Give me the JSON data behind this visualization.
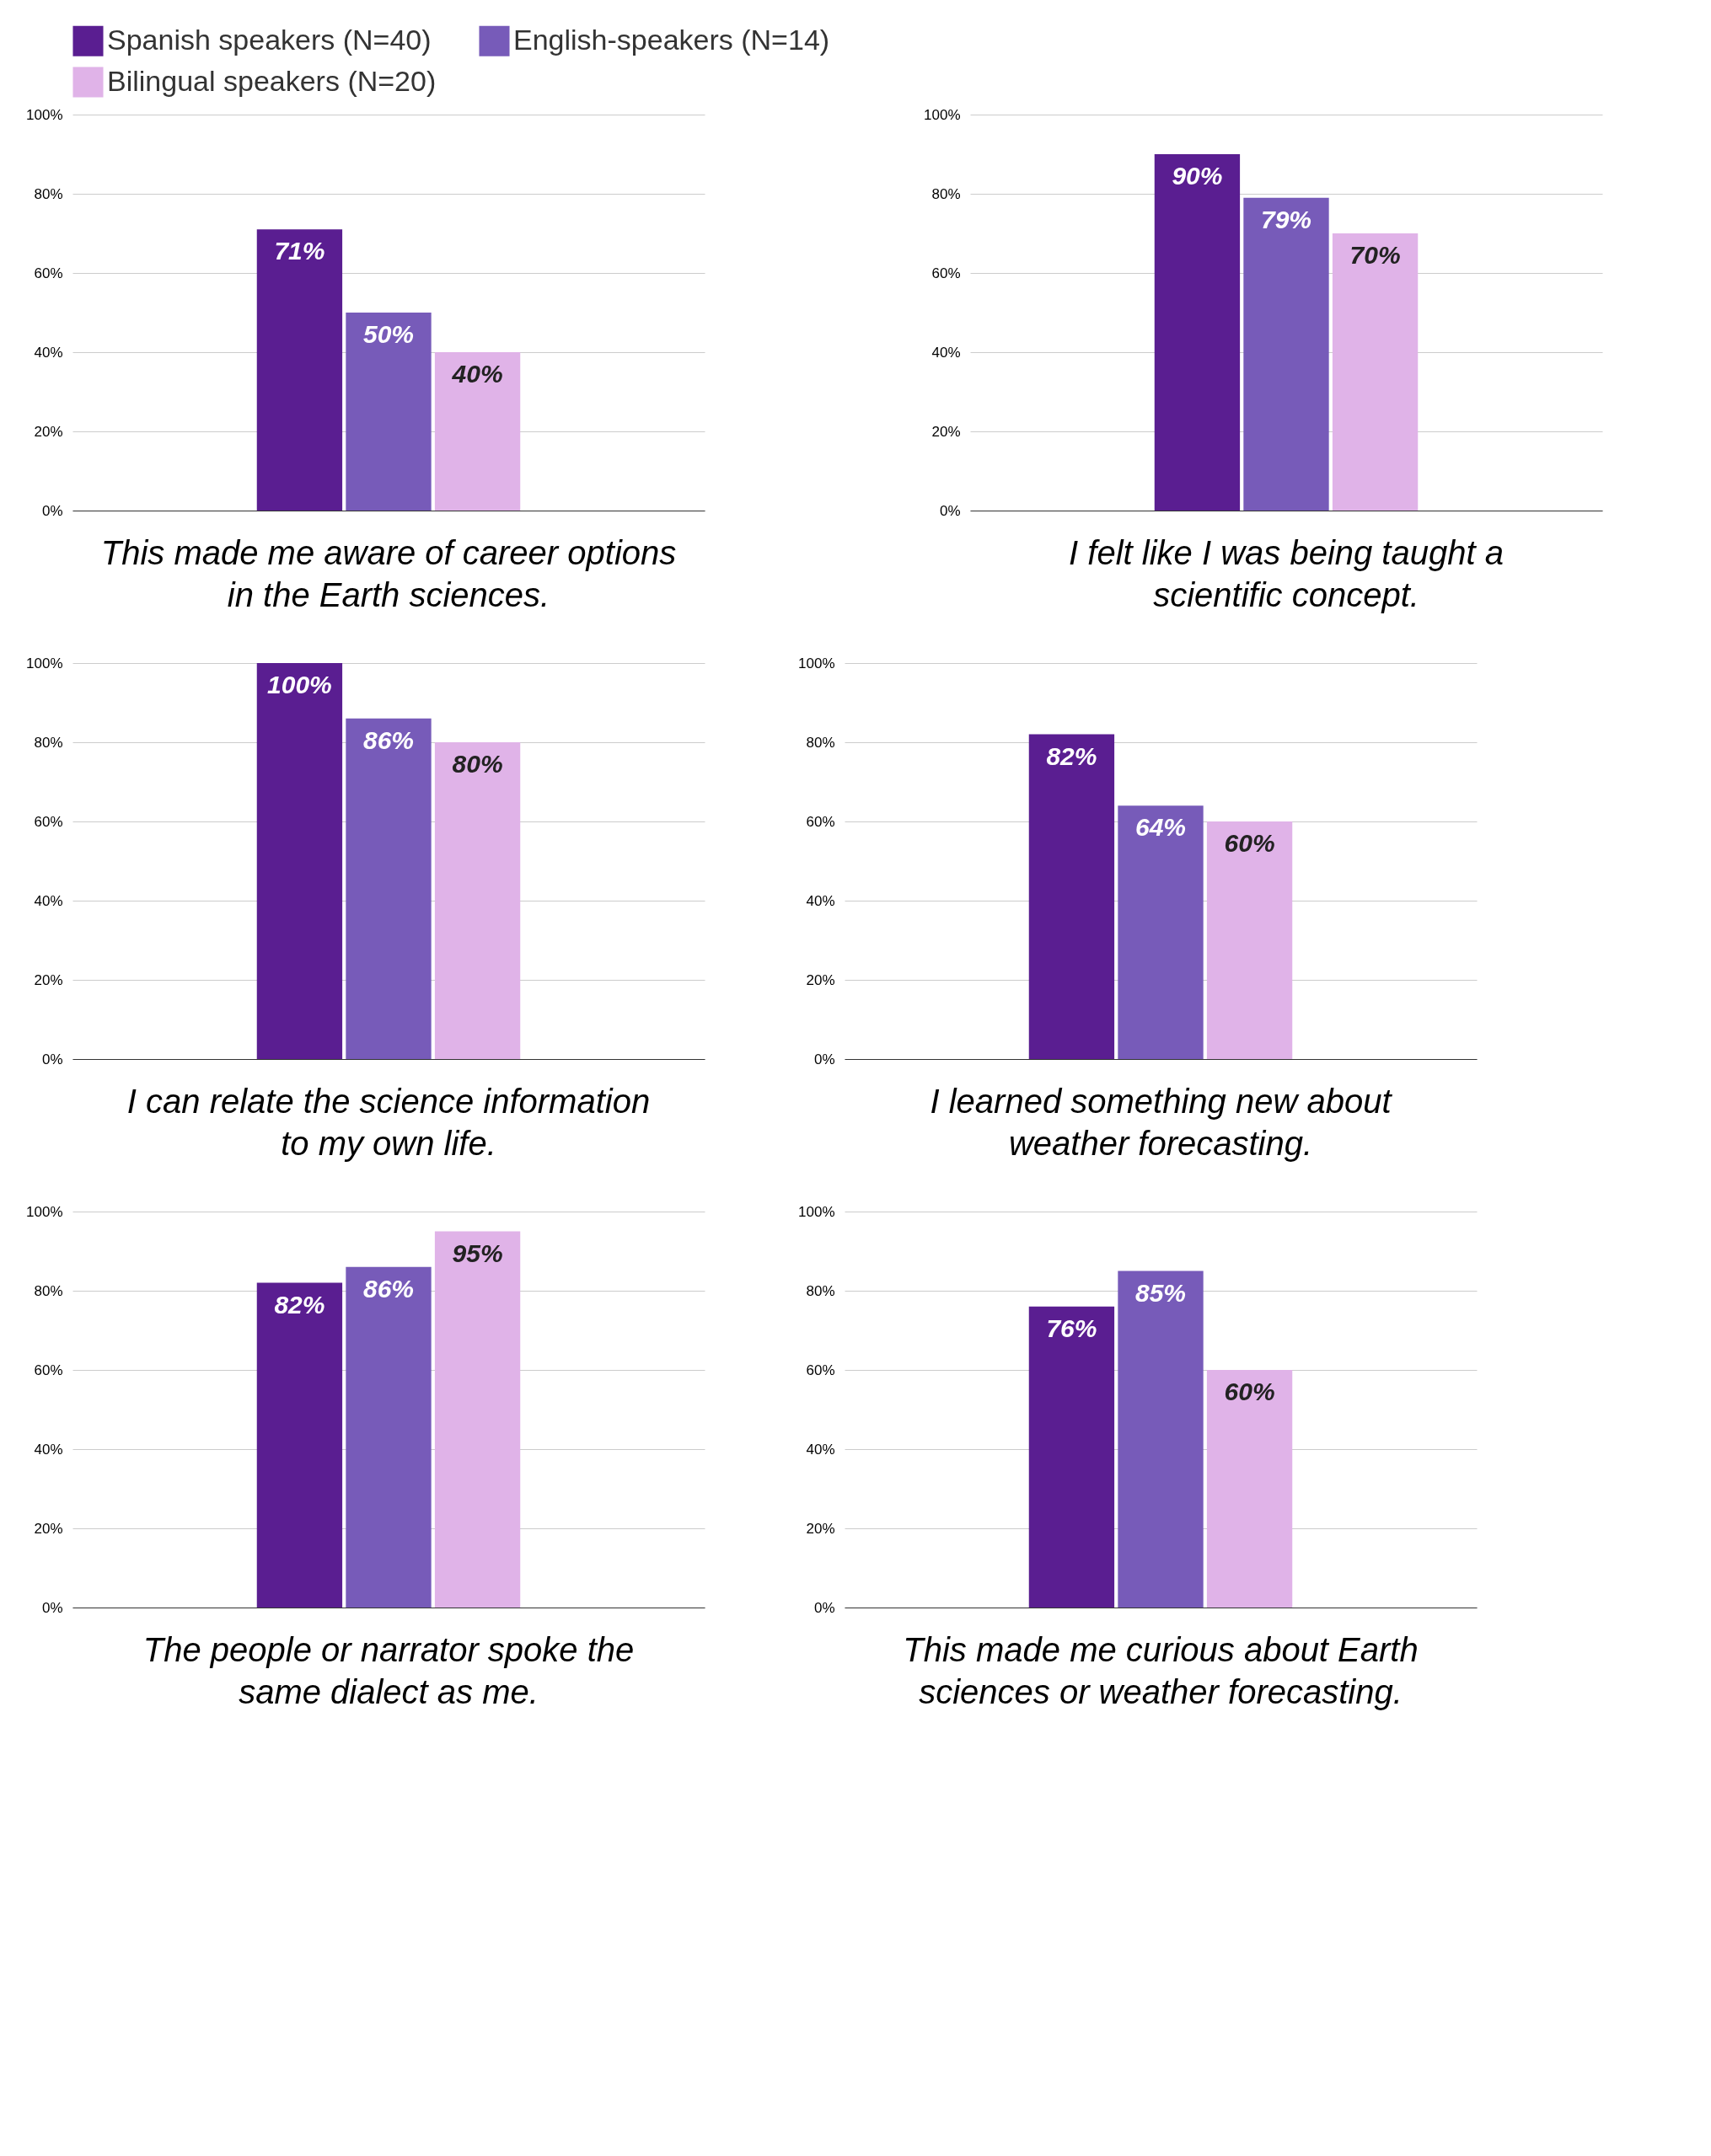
{
  "chart_data": [
    {
      "type": "bar",
      "title": "This made me aware of career options in the Earth sciences.",
      "categories": [
        null
      ],
      "series": [
        {
          "name": "Spanish speakers (N=40)",
          "color": "#5a1e91",
          "values": [
            71
          ],
          "value_labels": [
            "71%"
          ]
        },
        {
          "name": "English-speakers (N=14)",
          "color": "#775bb9",
          "values": [
            50
          ],
          "value_labels": [
            "50%"
          ]
        },
        {
          "name": "Bilingual speakers (N=20)",
          "color": "#e0b3e8",
          "values": [
            40
          ],
          "value_labels": [
            "40%"
          ]
        }
      ],
      "ylim": [
        0,
        100
      ],
      "yticks": [
        {
          "value": 0,
          "label": "0%"
        },
        {
          "value": 20,
          "label": "20%"
        },
        {
          "value": 40,
          "label": "40%"
        },
        {
          "value": 60,
          "label": "60%"
        },
        {
          "value": 80,
          "label": "80%"
        },
        {
          "value": 100,
          "label": "100%"
        }
      ],
      "grid": "y",
      "legend": "top",
      "tick_labels": "y"
    },
    {
      "type": "bar",
      "title": "I felt like I was being taught a scientific concept.",
      "categories": [
        null
      ],
      "series": [
        {
          "color": "#5a1e91",
          "values": [
            90
          ],
          "value_labels": [
            "90%"
          ]
        },
        {
          "color": "#775bb9",
          "values": [
            79
          ],
          "value_labels": [
            "79%"
          ]
        },
        {
          "color": "#e0b3e8",
          "values": [
            70
          ],
          "value_labels": [
            "70%"
          ]
        }
      ],
      "ylim": [
        0,
        100
      ],
      "yticks": [
        {
          "value": 0,
          "label": "0%"
        },
        {
          "value": 20,
          "label": "20%"
        },
        {
          "value": 40,
          "label": "40%"
        },
        {
          "value": 60,
          "label": "60%"
        },
        {
          "value": 80,
          "label": "80%"
        },
        {
          "value": 100,
          "label": "100%"
        }
      ],
      "grid": "y",
      "tick_labels": "y"
    },
    {
      "type": "bar",
      "title": "I can relate the science information to my own life.",
      "categories": [
        null
      ],
      "series": [
        {
          "color": "#5a1e91",
          "values": [
            100
          ],
          "value_labels": [
            "100%"
          ]
        },
        {
          "color": "#775bb9",
          "values": [
            86
          ],
          "value_labels": [
            "86%"
          ]
        },
        {
          "color": "#e0b3e8",
          "values": [
            80
          ],
          "value_labels": [
            "80%"
          ]
        }
      ],
      "ylim": [
        0,
        100
      ],
      "yticks": [
        {
          "value": 0,
          "label": "0%"
        },
        {
          "value": 20,
          "label": "20%"
        },
        {
          "value": 40,
          "label": "40%"
        },
        {
          "value": 60,
          "label": "60%"
        },
        {
          "value": 80,
          "label": "80%"
        },
        {
          "value": 100,
          "label": "100%"
        }
      ],
      "grid": "y",
      "tick_labels": "y"
    },
    {
      "type": "bar",
      "title": "I learned something new about weather forecasting.",
      "categories": [
        null
      ],
      "series": [
        {
          "color": "#5a1e91",
          "values": [
            82
          ],
          "value_labels": [
            "82%"
          ]
        },
        {
          "color": "#775bb9",
          "values": [
            64
          ],
          "value_labels": [
            "64%"
          ]
        },
        {
          "color": "#e0b3e8",
          "values": [
            60
          ],
          "value_labels": [
            "60%"
          ]
        }
      ],
      "ylim": [
        0,
        100
      ],
      "yticks": [
        {
          "value": 0,
          "label": "0%"
        },
        {
          "value": 20,
          "label": "20%"
        },
        {
          "value": 40,
          "label": "40%"
        },
        {
          "value": 60,
          "label": "60%"
        },
        {
          "value": 80,
          "label": "80%"
        },
        {
          "value": 100,
          "label": "100%"
        }
      ],
      "grid": "y",
      "tick_labels": "y"
    },
    {
      "type": "bar",
      "title": "The people or narrator spoke the same dialect as me.",
      "categories": [
        null
      ],
      "series": [
        {
          "color": "#5a1e91",
          "values": [
            82
          ],
          "value_labels": [
            "82%"
          ]
        },
        {
          "color": "#775bb9",
          "values": [
            86
          ],
          "value_labels": [
            "86%"
          ]
        },
        {
          "color": "#e0b3e8",
          "values": [
            95
          ],
          "value_labels": [
            "95%"
          ]
        }
      ],
      "ylim": [
        0,
        100
      ],
      "yticks": [
        {
          "value": 0,
          "label": "0%"
        },
        {
          "value": 20,
          "label": "20%"
        },
        {
          "value": 40,
          "label": "40%"
        },
        {
          "value": 60,
          "label": "60%"
        },
        {
          "value": 80,
          "label": "80%"
        },
        {
          "value": 100,
          "label": "100%"
        }
      ],
      "grid": "y",
      "tick_labels": "y"
    },
    {
      "type": "bar",
      "title": "This made me curious about Earth sciences or weather forecasting.",
      "categories": [
        null
      ],
      "series": [
        {
          "color": "#5a1e91",
          "values": [
            76
          ],
          "value_labels": [
            "76%"
          ]
        },
        {
          "color": "#775bb9",
          "values": [
            85
          ],
          "value_labels": [
            "85%"
          ]
        },
        {
          "color": "#e0b3e8",
          "values": [
            60
          ],
          "value_labels": [
            "60%"
          ]
        }
      ],
      "ylim": [
        0,
        100
      ],
      "yticks": [
        {
          "value": 0,
          "label": "0%"
        },
        {
          "value": 20,
          "label": "20%"
        },
        {
          "value": 40,
          "label": "40%"
        },
        {
          "value": 60,
          "label": "60%"
        },
        {
          "value": 80,
          "label": "80%"
        },
        {
          "value": 100,
          "label": "100%"
        }
      ],
      "grid": "y",
      "tick_labels": "y"
    }
  ]
}
